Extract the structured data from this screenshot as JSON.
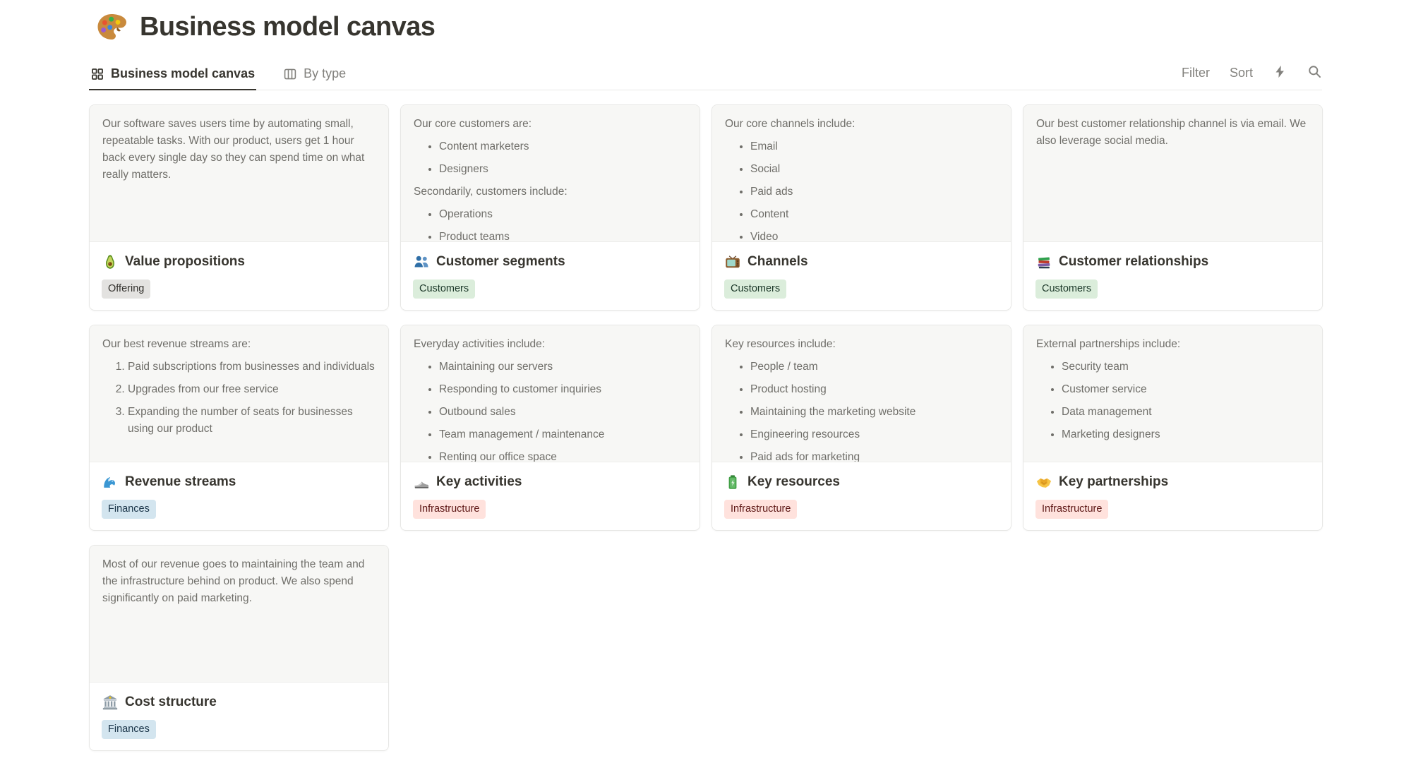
{
  "page": {
    "title": "Business model canvas",
    "title_icon": "palette"
  },
  "tabs": [
    {
      "label": "Business model canvas",
      "icon": "gallery",
      "active": true
    },
    {
      "label": "By type",
      "icon": "board",
      "active": false
    }
  ],
  "toolbar": {
    "filter_label": "Filter",
    "sort_label": "Sort",
    "icon_buttons": [
      {
        "icon": "lightning"
      },
      {
        "icon": "search"
      }
    ]
  },
  "tag_colors": {
    "Offering": {
      "bg": "#E3E2E0",
      "text": "#32302C"
    },
    "Customers": {
      "bg": "#DBEDDB",
      "text": "#1C3829"
    },
    "Finances": {
      "bg": "#D3E5EF",
      "text": "#183347"
    },
    "Infrastructure": {
      "bg": "#FFE2DD",
      "text": "#5D1715"
    }
  },
  "cards": [
    {
      "title": "Value propositions",
      "icon": "avocado",
      "tag": "Offering",
      "preview": [
        {
          "type": "p",
          "text": "Our software saves users time by automating small, repeatable tasks. With our product, users get 1 hour back every single day so they can spend time on what really matters."
        }
      ]
    },
    {
      "title": "Customer segments",
      "icon": "busts",
      "tag": "Customers",
      "preview": [
        {
          "type": "p",
          "text": "Our core customers are:"
        },
        {
          "type": "ul",
          "items": [
            "Content marketers",
            "Designers"
          ]
        },
        {
          "type": "p",
          "text": "Secondarily, customers include:"
        },
        {
          "type": "ul",
          "items": [
            "Operations",
            "Product teams"
          ]
        }
      ]
    },
    {
      "title": "Channels",
      "icon": "tv",
      "tag": "Customers",
      "preview": [
        {
          "type": "p",
          "text": "Our core channels include:"
        },
        {
          "type": "ul",
          "items": [
            "Email",
            "Social",
            "Paid ads",
            "Content",
            "Video"
          ]
        }
      ]
    },
    {
      "title": "Customer relationships",
      "icon": "books",
      "tag": "Customers",
      "preview": [
        {
          "type": "p",
          "text": "Our best customer relationship channel is via email. We also leverage social media."
        }
      ]
    },
    {
      "title": "Revenue streams",
      "icon": "wave",
      "tag": "Finances",
      "preview": [
        {
          "type": "p",
          "text": "Our best revenue streams are:"
        },
        {
          "type": "ol",
          "items": [
            "Paid subscriptions from businesses and individuals",
            "Upgrades from our free service",
            "Expanding the number of seats for businesses using our product"
          ]
        }
      ]
    },
    {
      "title": "Key activities",
      "icon": "shoe",
      "tag": "Infrastructure",
      "preview": [
        {
          "type": "p",
          "text": "Everyday activities include:"
        },
        {
          "type": "ul",
          "items": [
            "Maintaining our servers",
            "Responding to customer inquiries",
            "Outbound sales",
            "Team management / maintenance",
            "Renting our office space"
          ]
        }
      ]
    },
    {
      "title": "Key resources",
      "icon": "battery",
      "tag": "Infrastructure",
      "preview": [
        {
          "type": "p",
          "text": "Key resources include:"
        },
        {
          "type": "ul",
          "items": [
            "People / team",
            "Product hosting",
            "Maintaining the marketing website",
            "Engineering resources",
            "Paid ads for marketing"
          ]
        }
      ]
    },
    {
      "title": "Key partnerships",
      "icon": "handshake",
      "tag": "Infrastructure",
      "preview": [
        {
          "type": "p",
          "text": "External partnerships include:"
        },
        {
          "type": "ul",
          "items": [
            "Security team",
            "Customer service",
            "Data management",
            "Marketing designers"
          ]
        }
      ]
    },
    {
      "title": "Cost structure",
      "icon": "bank",
      "tag": "Finances",
      "preview": [
        {
          "type": "p",
          "text": "Most of our revenue goes to maintaining the team and the infrastructure behind on product. We also spend significantly on paid marketing."
        }
      ]
    }
  ]
}
